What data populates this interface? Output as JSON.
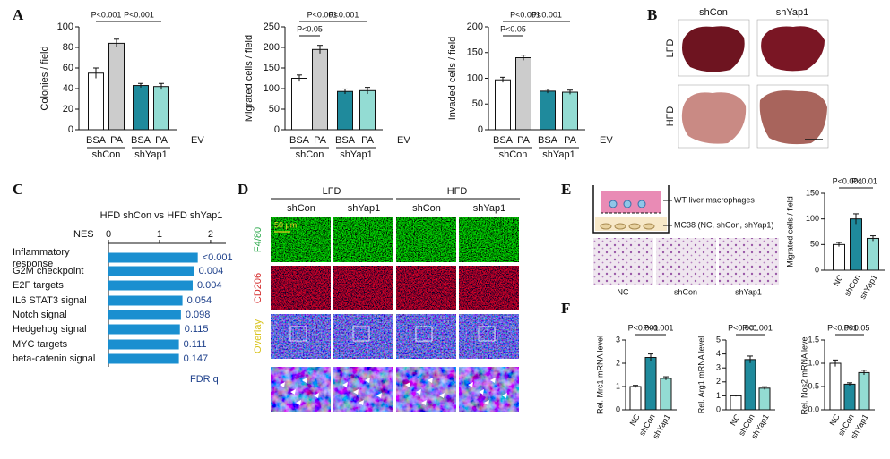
{
  "panel_labels": [
    "A",
    "B",
    "C",
    "D",
    "E",
    "F"
  ],
  "chart_data": [
    {
      "type": "bar",
      "y_label": "Colonies / field",
      "categories": [
        "BSA",
        "PA",
        "BSA",
        "PA"
      ],
      "groups": [
        "shCon",
        "shYap1"
      ],
      "row_label": "EV",
      "values": [
        55,
        84,
        43,
        42
      ],
      "errors": [
        5,
        4,
        2,
        3
      ],
      "colors": [
        "#ffffff",
        "#cccccc",
        "#1f8a9c",
        "#93dcd3"
      ],
      "ylim": [
        0,
        100
      ],
      "yticks": [
        0,
        20,
        40,
        60,
        80,
        100
      ],
      "annotations": [
        "P<0.001",
        "P<0.001"
      ]
    },
    {
      "type": "bar",
      "y_label": "Migrated cells / field",
      "categories": [
        "BSA",
        "PA",
        "BSA",
        "PA"
      ],
      "groups": [
        "shCon",
        "shYap1"
      ],
      "row_label": "EV",
      "values": [
        125,
        195,
        93,
        95
      ],
      "errors": [
        8,
        10,
        6,
        8
      ],
      "colors": [
        "#ffffff",
        "#cccccc",
        "#1f8a9c",
        "#93dcd3"
      ],
      "ylim": [
        0,
        250
      ],
      "yticks": [
        0,
        50,
        100,
        150,
        200,
        250
      ],
      "annotations": [
        "P<0.001",
        "P<0.05",
        "P<0.001"
      ]
    },
    {
      "type": "bar",
      "y_label": "Invaded cells / field",
      "categories": [
        "BSA",
        "PA",
        "BSA",
        "PA"
      ],
      "groups": [
        "shCon",
        "shYap1"
      ],
      "row_label": "EV",
      "values": [
        97,
        140,
        75,
        73
      ],
      "errors": [
        5,
        5,
        4,
        4
      ],
      "colors": [
        "#ffffff",
        "#cccccc",
        "#1f8a9c",
        "#93dcd3"
      ],
      "ylim": [
        0,
        200
      ],
      "yticks": [
        0,
        50,
        100,
        150,
        200
      ],
      "annotations": [
        "P<0.001",
        "P<0.05",
        "P<0.001"
      ]
    },
    {
      "type": "hbar",
      "title": "HFD shCon vs HFD shYap1",
      "x_label": "NES",
      "categories": [
        "Inflammatory response",
        "G2M checkpoint",
        "E2F targets",
        "IL6 STAT3 signal",
        "Notch signal",
        "Hedgehog signal",
        "MYC targets",
        "beta-catenin signal"
      ],
      "values": [
        1.75,
        1.68,
        1.65,
        1.45,
        1.42,
        1.4,
        1.38,
        1.38
      ],
      "color": "#1a8fd0",
      "xlim": [
        0,
        2.3
      ],
      "xticks": [
        0,
        1,
        2
      ],
      "fdr": [
        "<0.001",
        "0.004",
        "0.004",
        "0.054",
        "0.098",
        "0.115",
        "0.111",
        "0.147"
      ],
      "fdr_label": "FDR q"
    },
    {
      "type": "bar",
      "y_label": "Migrated cells / field",
      "categories": [
        "NC",
        "shCon",
        "shYap1"
      ],
      "values": [
        50,
        100,
        62
      ],
      "errors": [
        4,
        10,
        5
      ],
      "colors": [
        "#ffffff",
        "#1f8a9c",
        "#93dcd3"
      ],
      "ylim": [
        0,
        150
      ],
      "yticks": [
        0,
        50,
        100,
        150
      ],
      "annotations": [
        "P<0.001",
        "P<0.01"
      ]
    },
    {
      "type": "bar",
      "y_label": "Rel. Mrc1 mRNA level",
      "categories": [
        "NC",
        "shCon",
        "shYap1"
      ],
      "values": [
        1.0,
        2.25,
        1.35
      ],
      "errors": [
        0.05,
        0.15,
        0.07
      ],
      "colors": [
        "#ffffff",
        "#1f8a9c",
        "#93dcd3"
      ],
      "ylim": [
        0,
        3
      ],
      "yticks": [
        0,
        1,
        2,
        3
      ],
      "annotations": [
        "P<0.001",
        "P<0.001"
      ]
    },
    {
      "type": "bar",
      "y_label": "Rel. Arg1 mRNA level",
      "categories": [
        "NC",
        "shCon",
        "shYap1"
      ],
      "values": [
        1.0,
        3.6,
        1.55
      ],
      "errors": [
        0.05,
        0.25,
        0.1
      ],
      "colors": [
        "#ffffff",
        "#1f8a9c",
        "#93dcd3"
      ],
      "ylim": [
        0,
        5
      ],
      "yticks": [
        0,
        1,
        2,
        3,
        4,
        5
      ],
      "annotations": [
        "P<0.001",
        "P<0.001"
      ]
    },
    {
      "type": "bar",
      "y_label": "Rel. Nos2 mRNA level",
      "categories": [
        "NC",
        "shCon",
        "shYap1"
      ],
      "values": [
        1.0,
        0.55,
        0.8
      ],
      "errors": [
        0.07,
        0.03,
        0.05
      ],
      "colors": [
        "#ffffff",
        "#1f8a9c",
        "#93dcd3"
      ],
      "ylim": [
        0,
        1.5
      ],
      "yticks": [
        {
          "value": 0,
          "label": "0.0"
        },
        0.5,
        {
          "value": 1,
          "label": "1.0"
        },
        1.5
      ],
      "annotations": [
        "P<0.001",
        "P<0.05"
      ]
    }
  ],
  "panel_b": {
    "columns": [
      "shCon",
      "shYap1"
    ],
    "rows": [
      "LFD",
      "HFD"
    ]
  },
  "panel_d": {
    "groups": [
      "LFD",
      "HFD"
    ],
    "columns": [
      "shCon",
      "shYap1",
      "shCon",
      "shYap1"
    ],
    "rows": [
      "F4/80",
      "CD206",
      "Overlay"
    ],
    "scale_bar": "50 μm"
  },
  "panel_e": {
    "schematic": [
      "WT liver macrophages",
      "MC38 (NC, shCon, shYap1)"
    ],
    "images": [
      "NC",
      "shCon",
      "shYap1"
    ]
  }
}
